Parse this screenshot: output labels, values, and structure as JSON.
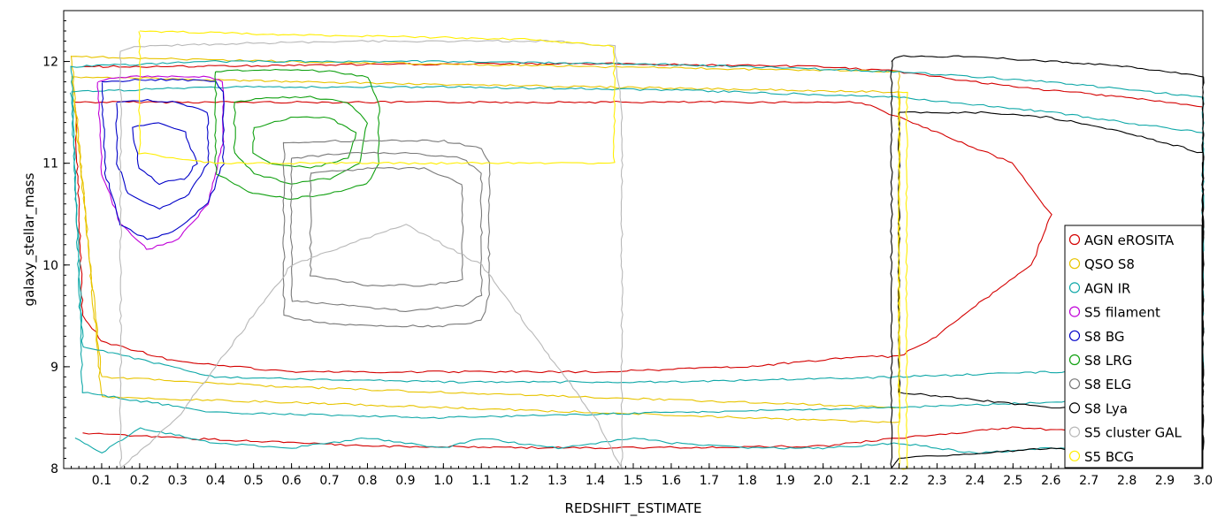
{
  "chart_data": {
    "type": "contour",
    "xlabel": "REDSHIFT_ESTIMATE",
    "ylabel": "galaxy_stellar_mass",
    "xlim": [
      0.0,
      3.0
    ],
    "ylim": [
      8.0,
      12.5
    ],
    "x_ticks": [
      0.1,
      0.2,
      0.3,
      0.4,
      0.5,
      0.6,
      0.7,
      0.8,
      0.9,
      1.0,
      1.1,
      1.2,
      1.3,
      1.4,
      1.5,
      1.6,
      1.7,
      1.8,
      1.9,
      2.0,
      2.1,
      2.2,
      2.3,
      2.4,
      2.5,
      2.6,
      2.7,
      2.8,
      2.9,
      3.0
    ],
    "x_tick_labels": [
      "0.1",
      "0.2",
      "0.3",
      "0.4",
      "0.5",
      "0.6",
      "0.7",
      "0.8",
      "0.9",
      "1.0",
      "1.1",
      "1.2",
      "1.3",
      "1.4",
      "1.5",
      "1.6",
      "1.7",
      "1.8",
      "1.9",
      "2.0",
      "2.1",
      "2.2",
      "2.3",
      "2.4",
      "2.5",
      "2.6",
      "2.7",
      "2.8",
      "2.9",
      "3.0"
    ],
    "y_ticks": [
      8,
      9,
      10,
      11,
      12
    ],
    "y_tick_labels": [
      "8",
      "9",
      "10",
      "11",
      "12"
    ],
    "legend_position": "right",
    "series": [
      {
        "name": "AGN eROSITA",
        "color": "#d40000",
        "levels": [
          {
            "x": [
              0.03,
              0.1,
              0.3,
              0.6,
              1.0,
              1.4,
              1.8,
              2.1,
              2.2,
              2.3,
              2.5,
              2.6,
              2.55,
              2.4,
              2.3,
              2.2,
              2.1,
              1.8,
              1.4,
              1.0,
              0.6,
              0.3,
              0.1,
              0.05,
              0.03
            ],
            "y": [
              11.6,
              11.6,
              11.6,
              11.6,
              11.6,
              11.6,
              11.6,
              11.6,
              11.45,
              11.3,
              11.0,
              10.5,
              10.0,
              9.6,
              9.3,
              9.1,
              9.1,
              9.0,
              8.95,
              8.95,
              8.95,
              9.05,
              9.25,
              9.5,
              11.6
            ]
          },
          {
            "x": [
              0.05,
              0.3,
              0.8,
              1.4,
              2.0,
              2.2,
              2.5,
              2.8,
              3.0
            ],
            "y": [
              11.95,
              11.95,
              11.97,
              11.98,
              11.95,
              11.9,
              11.75,
              11.65,
              11.55
            ]
          },
          {
            "x": [
              0.05,
              0.3,
              0.8,
              1.4,
              2.0,
              2.2,
              2.5,
              2.8,
              3.0
            ],
            "y": [
              8.35,
              8.3,
              8.22,
              8.2,
              8.22,
              8.3,
              8.4,
              8.35,
              8.3
            ]
          }
        ]
      },
      {
        "name": "QSO S8",
        "color": "#e8c400",
        "levels": [
          {
            "x": [
              0.02,
              0.6,
              1.4,
              2.2,
              2.2,
              1.4,
              0.6,
              0.1,
              0.02
            ],
            "y": [
              11.85,
              11.8,
              11.75,
              11.7,
              8.6,
              8.7,
              8.8,
              8.9,
              11.85
            ]
          },
          {
            "x": [
              0.02,
              0.6,
              1.4,
              2.2,
              2.2,
              1.4,
              0.6,
              0.1,
              0.02
            ],
            "y": [
              12.05,
              12.0,
              11.95,
              11.9,
              8.45,
              8.55,
              8.65,
              8.7,
              12.05
            ]
          }
        ]
      },
      {
        "name": "AGN IR",
        "color": "#10a8a8",
        "levels": [
          {
            "x": [
              0.02,
              0.4,
              1.0,
              1.6,
              2.2,
              2.6,
              3.0,
              3.0,
              2.6,
              2.2,
              1.6,
              1.0,
              0.4,
              0.05,
              0.02
            ],
            "y": [
              11.7,
              11.75,
              11.75,
              11.72,
              11.65,
              11.5,
              11.3,
              8.95,
              8.95,
              8.9,
              8.85,
              8.85,
              8.9,
              9.2,
              11.7
            ]
          },
          {
            "x": [
              0.02,
              0.4,
              1.0,
              1.6,
              2.2,
              2.6,
              3.0,
              3.0,
              2.6,
              2.2,
              1.6,
              1.0,
              0.4,
              0.05,
              0.02
            ],
            "y": [
              11.95,
              12.0,
              12.0,
              11.97,
              11.9,
              11.8,
              11.65,
              8.7,
              8.65,
              8.6,
              8.55,
              8.5,
              8.55,
              8.75,
              11.95
            ]
          },
          {
            "x": [
              0.03,
              0.1,
              0.2,
              0.4,
              0.6,
              0.8,
              0.9,
              1.0,
              1.1,
              1.2,
              1.3,
              1.4,
              1.5,
              1.6,
              1.8,
              2.0,
              2.2,
              2.4,
              2.6,
              2.8,
              3.0
            ],
            "y": [
              8.3,
              8.15,
              8.4,
              8.25,
              8.2,
              8.3,
              8.25,
              8.2,
              8.3,
              8.25,
              8.2,
              8.25,
              8.3,
              8.25,
              8.2,
              8.2,
              8.25,
              8.15,
              8.2,
              8.15,
              8.2
            ]
          }
        ]
      },
      {
        "name": "S5 filament",
        "color": "#c000d8",
        "levels": [
          {
            "x": [
              0.09,
              0.15,
              0.22,
              0.3,
              0.37,
              0.42,
              0.42,
              0.38,
              0.3,
              0.22,
              0.15,
              0.1,
              0.09
            ],
            "y": [
              11.8,
              11.85,
              11.85,
              11.85,
              11.85,
              11.8,
              11.2,
              10.6,
              10.25,
              10.15,
              10.4,
              10.9,
              11.8
            ]
          }
        ]
      },
      {
        "name": "S8 BG",
        "color": "#0000c8",
        "levels": [
          {
            "x": [
              0.1,
              0.2,
              0.3,
              0.4,
              0.42,
              0.42,
              0.38,
              0.3,
              0.22,
              0.15,
              0.11,
              0.1
            ],
            "y": [
              11.8,
              11.82,
              11.82,
              11.8,
              11.7,
              11.0,
              10.6,
              10.35,
              10.25,
              10.4,
              10.9,
              11.8
            ]
          },
          {
            "x": [
              0.14,
              0.22,
              0.3,
              0.38,
              0.38,
              0.33,
              0.25,
              0.17,
              0.14,
              0.14
            ],
            "y": [
              11.6,
              11.62,
              11.6,
              11.5,
              11.0,
              10.7,
              10.55,
              10.7,
              11.0,
              11.6
            ]
          },
          {
            "x": [
              0.18,
              0.25,
              0.32,
              0.35,
              0.32,
              0.25,
              0.2,
              0.18
            ],
            "y": [
              11.35,
              11.4,
              11.3,
              11.0,
              10.85,
              10.8,
              10.95,
              11.35
            ]
          }
        ]
      },
      {
        "name": "S8 LRG",
        "color": "#10a010",
        "levels": [
          {
            "x": [
              0.4,
              0.5,
              0.6,
              0.7,
              0.8,
              0.83,
              0.83,
              0.8,
              0.7,
              0.6,
              0.5,
              0.4,
              0.4
            ],
            "y": [
              11.9,
              11.92,
              11.92,
              11.9,
              11.85,
              11.6,
              11.0,
              10.8,
              10.7,
              10.65,
              10.7,
              10.9,
              11.9
            ]
          },
          {
            "x": [
              0.45,
              0.55,
              0.65,
              0.75,
              0.8,
              0.78,
              0.7,
              0.6,
              0.5,
              0.45,
              0.45
            ],
            "y": [
              11.6,
              11.65,
              11.65,
              11.6,
              11.4,
              11.0,
              10.85,
              10.8,
              10.9,
              11.1,
              11.6
            ]
          },
          {
            "x": [
              0.5,
              0.6,
              0.7,
              0.77,
              0.75,
              0.65,
              0.55,
              0.5,
              0.5
            ],
            "y": [
              11.35,
              11.45,
              11.45,
              11.3,
              11.05,
              10.95,
              11.0,
              11.1,
              11.35
            ]
          }
        ]
      },
      {
        "name": "S8 ELG",
        "color": "#7a7a7a",
        "levels": [
          {
            "x": [
              0.58,
              0.7,
              0.85,
              1.0,
              1.1,
              1.12,
              1.12,
              1.1,
              1.0,
              0.85,
              0.7,
              0.58,
              0.58
            ],
            "y": [
              11.2,
              11.22,
              11.22,
              11.22,
              11.15,
              11.0,
              9.7,
              9.45,
              9.4,
              9.4,
              9.42,
              9.5,
              11.2
            ]
          },
          {
            "x": [
              0.6,
              0.75,
              0.9,
              1.05,
              1.1,
              1.1,
              1.05,
              0.9,
              0.75,
              0.6,
              0.6
            ],
            "y": [
              11.05,
              11.1,
              11.1,
              11.05,
              10.9,
              9.7,
              9.6,
              9.55,
              9.6,
              9.65,
              11.05
            ]
          },
          {
            "x": [
              0.65,
              0.8,
              0.95,
              1.05,
              1.05,
              0.95,
              0.8,
              0.65,
              0.65
            ],
            "y": [
              10.9,
              10.95,
              10.95,
              10.8,
              9.85,
              9.8,
              9.8,
              9.9,
              10.9
            ]
          }
        ]
      },
      {
        "name": "S8 Lya",
        "color": "#000000",
        "levels": [
          {
            "x": [
              2.18,
              2.2,
              2.4,
              2.6,
              2.8,
              3.0,
              3.0,
              2.8,
              2.6,
              2.4,
              2.2,
              2.18,
              2.18
            ],
            "y": [
              12.0,
              12.05,
              12.05,
              12.0,
              11.95,
              11.85,
              8.15,
              8.15,
              8.2,
              8.15,
              8.1,
              8.0,
              12.0
            ]
          },
          {
            "x": [
              2.2,
              2.4,
              2.6,
              2.8,
              3.0,
              3.0,
              2.6,
              2.2,
              2.2
            ],
            "y": [
              11.5,
              11.5,
              11.45,
              11.3,
              11.1,
              8.6,
              8.6,
              8.75,
              11.5
            ]
          }
        ]
      },
      {
        "name": "S5 cluster GAL",
        "color": "#b8b8b8",
        "levels": [
          {
            "x": [
              0.15,
              0.2,
              0.5,
              0.8,
              1.1,
              1.3,
              1.45,
              1.47,
              1.47,
              1.4,
              1.3,
              1.1,
              0.9,
              0.6,
              0.3,
              0.15,
              0.15
            ],
            "y": [
              12.1,
              12.15,
              12.18,
              12.2,
              12.2,
              12.2,
              12.15,
              11.5,
              8.0,
              8.5,
              9.0,
              10.0,
              10.4,
              10.0,
              8.5,
              8.0,
              12.1
            ]
          }
        ]
      },
      {
        "name": "S5 BCG",
        "color": "#ffee00",
        "levels": [
          {
            "x": [
              0.2,
              0.4,
              0.8,
              1.2,
              1.45,
              1.45,
              1.2,
              0.8,
              0.4,
              0.2,
              0.2
            ],
            "y": [
              12.3,
              12.28,
              12.25,
              12.22,
              12.15,
              11.0,
              11.0,
              11.0,
              11.0,
              11.1,
              12.3
            ]
          },
          {
            "x": [
              2.2,
              2.22,
              2.22,
              2.2,
              2.2
            ],
            "y": [
              11.7,
              11.7,
              8.0,
              8.0,
              11.7
            ]
          }
        ]
      }
    ]
  }
}
